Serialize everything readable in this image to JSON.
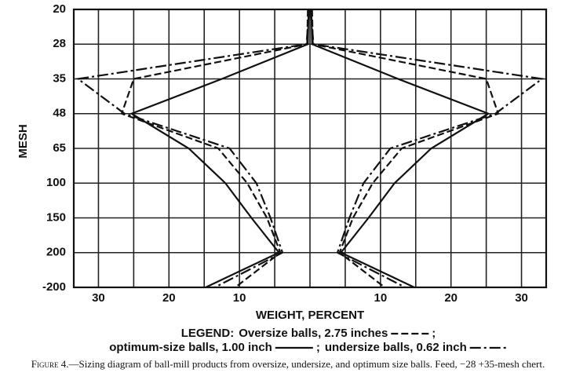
{
  "chart_data": {
    "type": "mirror-line",
    "xlabel": "WEIGHT, PERCENT",
    "ylabel": "MESH",
    "categories": [
      "20",
      "28",
      "35",
      "48",
      "65",
      "100",
      "150",
      "200",
      "-200"
    ],
    "xlim": [
      -33.5,
      33.5
    ],
    "xticks": [
      {
        "value": -30,
        "label": "30"
      },
      {
        "value": -20,
        "label": "20"
      },
      {
        "value": -10,
        "label": "10"
      },
      10,
      20,
      30
    ],
    "xminor": [
      -25,
      -15,
      -5,
      0,
      5,
      15,
      25
    ],
    "grid": true,
    "legend_title": "LEGEND:",
    "legend_separator": ";",
    "series": [
      {
        "name": "Oversize balls, 2.75 inches",
        "color": "#111111",
        "dash": "9,4",
        "values": [
          0.3,
          0.4,
          25.0,
          26.7,
          13.0,
          8.9,
          6.1,
          4.2,
          10.6
        ]
      },
      {
        "name": "optimum-size balls, 1.00 inch",
        "color": "#111111",
        "dash": "none",
        "values": [
          0.2,
          0.3,
          12.5,
          25.3,
          17.2,
          12.0,
          8.3,
          4.4,
          14.8
        ]
      },
      {
        "name": "undersize balls, 0.62 inch",
        "color": "#111111",
        "dash": "14,4,3,4",
        "values": [
          0.1,
          0.5,
          32.9,
          26.3,
          11.4,
          7.6,
          5.6,
          3.9,
          13.5
        ]
      }
    ]
  },
  "caption": {
    "label": "Figure 4.",
    "text": "—Sizing diagram of ball-mill products from oversize, undersize, and optimum size balls.  Feed, −28 +35-mesh chert."
  }
}
